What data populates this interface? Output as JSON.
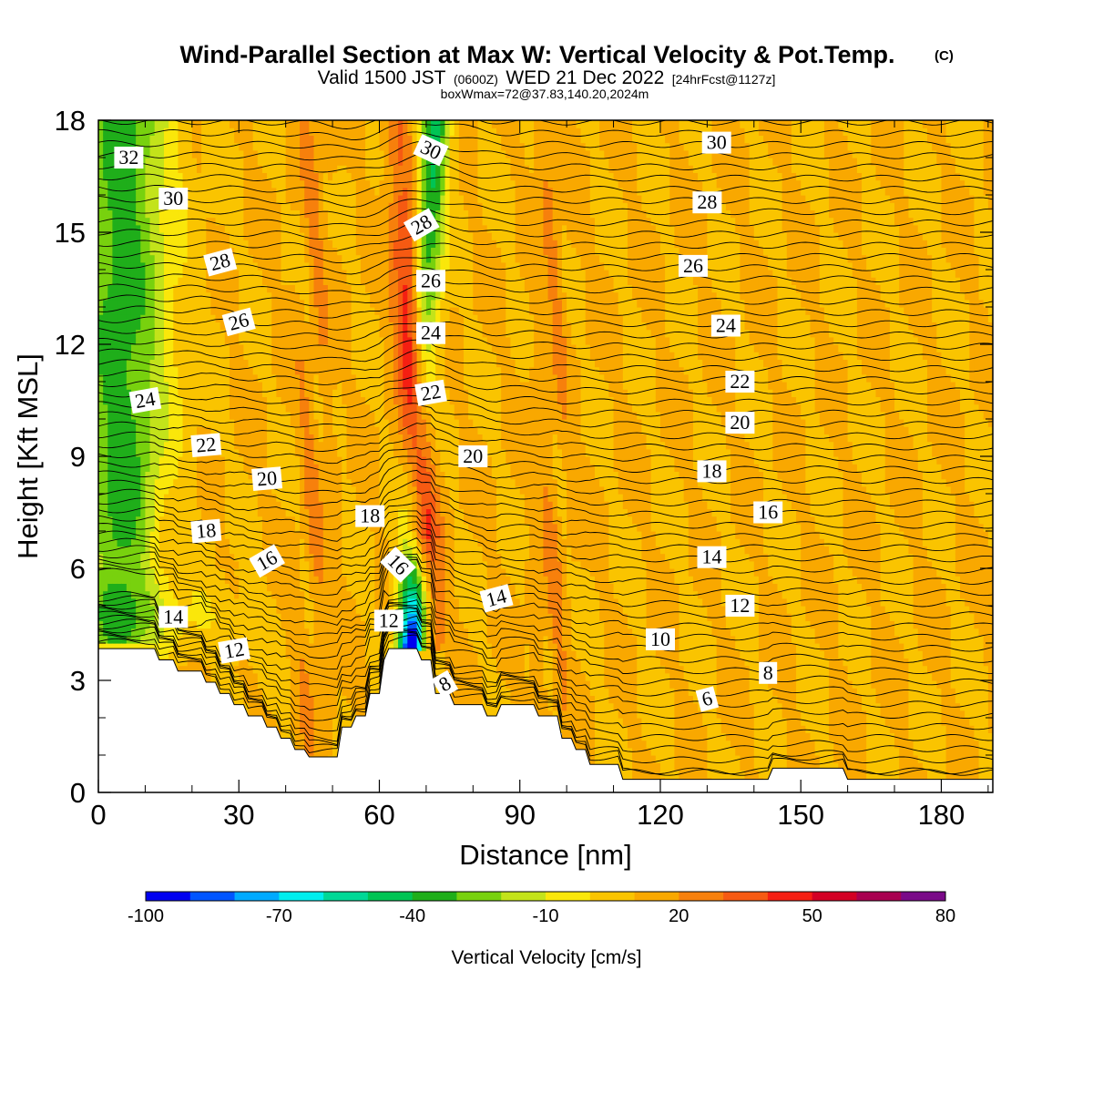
{
  "header": {
    "title": "Wind-Parallel Section at Max W: Vertical Velocity & Pot.Temp.",
    "copyright": "(C)",
    "valid_prefix": "Valid 1500 JST",
    "valid_utc": "(0600Z)",
    "valid_date": "WED 21 Dec 2022",
    "forecast": "[24hrFcst@1127z]",
    "box_info": "boxWmax=72@37.83,140.20,2024m"
  },
  "chart_data": {
    "type": "heatmap",
    "title": "Wind-Parallel Section at Max W: Vertical Velocity & Pot.Temp.",
    "xlabel": "Distance [nm]",
    "ylabel": "Height [Kft MSL]",
    "xlim": [
      0,
      191
    ],
    "ylim": [
      0,
      18
    ],
    "x_ticks": [
      0,
      30,
      60,
      90,
      120,
      150,
      180
    ],
    "y_ticks": [
      0,
      3,
      6,
      9,
      12,
      15,
      18
    ],
    "colorbar": {
      "label": "Vertical Velocity [cm/s]",
      "tick_labels": [
        "-100",
        "-70",
        "-40",
        "-10",
        "20",
        "50",
        "80"
      ],
      "levels": [
        -100,
        -90,
        -80,
        -70,
        -60,
        -50,
        -40,
        -30,
        -20,
        -10,
        0,
        10,
        20,
        30,
        40,
        50,
        60,
        70,
        80
      ],
      "colors": [
        "#0000f0",
        "#0055ff",
        "#00aaff",
        "#00eeee",
        "#00d896",
        "#00c454",
        "#1fae1a",
        "#78d10e",
        "#c3e31a",
        "#fae70a",
        "#fac400",
        "#f9a800",
        "#f7800c",
        "#f65a12",
        "#f51f12",
        "#d30024",
        "#a80050",
        "#7a0a88"
      ]
    },
    "terrain": [
      [
        0,
        3.85
      ],
      [
        12,
        3.85
      ],
      [
        13,
        3.55
      ],
      [
        16,
        3.55
      ],
      [
        17,
        3.25
      ],
      [
        22,
        3.25
      ],
      [
        23,
        2.95
      ],
      [
        25,
        2.95
      ],
      [
        26,
        2.65
      ],
      [
        28,
        2.65
      ],
      [
        29,
        2.35
      ],
      [
        31,
        2.35
      ],
      [
        32,
        2.05
      ],
      [
        35,
        2.05
      ],
      [
        36,
        1.75
      ],
      [
        38,
        1.75
      ],
      [
        39,
        1.45
      ],
      [
        41,
        1.45
      ],
      [
        42,
        1.15
      ],
      [
        44,
        1.15
      ],
      [
        45,
        0.95
      ],
      [
        51,
        0.95
      ],
      [
        52,
        1.75
      ],
      [
        54,
        1.75
      ],
      [
        55,
        2.05
      ],
      [
        57,
        2.05
      ],
      [
        58,
        2.65
      ],
      [
        60,
        2.65
      ],
      [
        61,
        3.55
      ],
      [
        62,
        3.85
      ],
      [
        68,
        3.85
      ],
      [
        69,
        3.55
      ],
      [
        71,
        3.55
      ],
      [
        72,
        2.65
      ],
      [
        75,
        2.65
      ],
      [
        76,
        2.35
      ],
      [
        82,
        2.35
      ],
      [
        83,
        2.05
      ],
      [
        85,
        2.05
      ],
      [
        86,
        2.35
      ],
      [
        93,
        2.35
      ],
      [
        94,
        2.05
      ],
      [
        98,
        2.05
      ],
      [
        99,
        1.45
      ],
      [
        101,
        1.45
      ],
      [
        102,
        1.15
      ],
      [
        104,
        1.15
      ],
      [
        105,
        0.75
      ],
      [
        111,
        0.75
      ],
      [
        112,
        0.35
      ],
      [
        143,
        0.35
      ],
      [
        144,
        0.65
      ],
      [
        159,
        0.65
      ],
      [
        160,
        0.35
      ],
      [
        191,
        0.35
      ]
    ],
    "wvel_field": {
      "background": 10,
      "features": [
        {
          "kind": "updraft_core",
          "x_base": 71,
          "y_base": 3.8,
          "x_top": 64,
          "y_top": 18,
          "value": 55,
          "halfwidth_nm": 2.3
        },
        {
          "kind": "downdraft_core",
          "x_base": 66,
          "y_base": 3.8,
          "x_top": 72,
          "y_top": 18,
          "value": -45,
          "halfwidth_nm": 2.2
        },
        {
          "kind": "lee_downdraft",
          "x": 67,
          "y_base": 3.8,
          "y_top": 7,
          "value": -95
        },
        {
          "kind": "western_downdraft_band",
          "x": 5,
          "y_base": 4,
          "y_top": 18,
          "value": -35
        },
        {
          "kind": "updraft_band",
          "x": 46,
          "y_base": 1,
          "y_top": 18,
          "value": 25
        },
        {
          "kind": "updraft_band",
          "x": 97,
          "y_base": 2,
          "y_top": 18,
          "value": 25
        }
      ]
    },
    "theta_contours": {
      "interval": 1,
      "labels": [
        {
          "text": "32",
          "x": 6.5,
          "y": 17.0,
          "angle": 0
        },
        {
          "text": "30",
          "x": 16,
          "y": 15.9,
          "angle": 0
        },
        {
          "text": "28",
          "x": 26,
          "y": 14.2,
          "angle": -15
        },
        {
          "text": "26",
          "x": 30,
          "y": 12.6,
          "angle": -15
        },
        {
          "text": "24",
          "x": 10,
          "y": 10.5,
          "angle": -10
        },
        {
          "text": "22",
          "x": 23,
          "y": 9.3,
          "angle": -5
        },
        {
          "text": "20",
          "x": 36,
          "y": 8.4,
          "angle": -5
        },
        {
          "text": "18",
          "x": 23,
          "y": 7.0,
          "angle": -5
        },
        {
          "text": "16",
          "x": 36,
          "y": 6.2,
          "angle": -30
        },
        {
          "text": "14",
          "x": 16,
          "y": 4.7,
          "angle": 0
        },
        {
          "text": "12",
          "x": 29,
          "y": 3.8,
          "angle": -10
        },
        {
          "text": "18",
          "x": 58,
          "y": 7.4,
          "angle": 0
        },
        {
          "text": "16",
          "x": 64,
          "y": 6.1,
          "angle": 45
        },
        {
          "text": "12",
          "x": 62,
          "y": 4.6,
          "angle": 0
        },
        {
          "text": "8",
          "x": 74,
          "y": 2.9,
          "angle": -30
        },
        {
          "text": "30",
          "x": 71,
          "y": 17.2,
          "angle": 25
        },
        {
          "text": "28",
          "x": 69,
          "y": 15.2,
          "angle": -30
        },
        {
          "text": "26",
          "x": 71,
          "y": 13.7,
          "angle": 0
        },
        {
          "text": "24",
          "x": 71,
          "y": 12.3,
          "angle": 0
        },
        {
          "text": "22",
          "x": 71,
          "y": 10.7,
          "angle": -10
        },
        {
          "text": "20",
          "x": 80,
          "y": 9.0,
          "angle": 0
        },
        {
          "text": "14",
          "x": 85,
          "y": 5.2,
          "angle": -15
        },
        {
          "text": "30",
          "x": 132,
          "y": 17.4,
          "angle": 0
        },
        {
          "text": "28",
          "x": 130,
          "y": 15.8,
          "angle": 0
        },
        {
          "text": "26",
          "x": 127,
          "y": 14.1,
          "angle": 0
        },
        {
          "text": "24",
          "x": 134,
          "y": 12.5,
          "angle": 0
        },
        {
          "text": "22",
          "x": 137,
          "y": 11.0,
          "angle": 0
        },
        {
          "text": "20",
          "x": 137,
          "y": 9.9,
          "angle": 0
        },
        {
          "text": "18",
          "x": 131,
          "y": 8.6,
          "angle": 0
        },
        {
          "text": "16",
          "x": 143,
          "y": 7.5,
          "angle": 0
        },
        {
          "text": "14",
          "x": 131,
          "y": 6.3,
          "angle": 0
        },
        {
          "text": "12",
          "x": 137,
          "y": 5.0,
          "angle": 0
        },
        {
          "text": "10",
          "x": 120,
          "y": 4.1,
          "angle": 0
        },
        {
          "text": "8",
          "x": 143,
          "y": 3.2,
          "angle": 0
        },
        {
          "text": "6",
          "x": 130,
          "y": 2.5,
          "angle": -15
        }
      ]
    }
  }
}
